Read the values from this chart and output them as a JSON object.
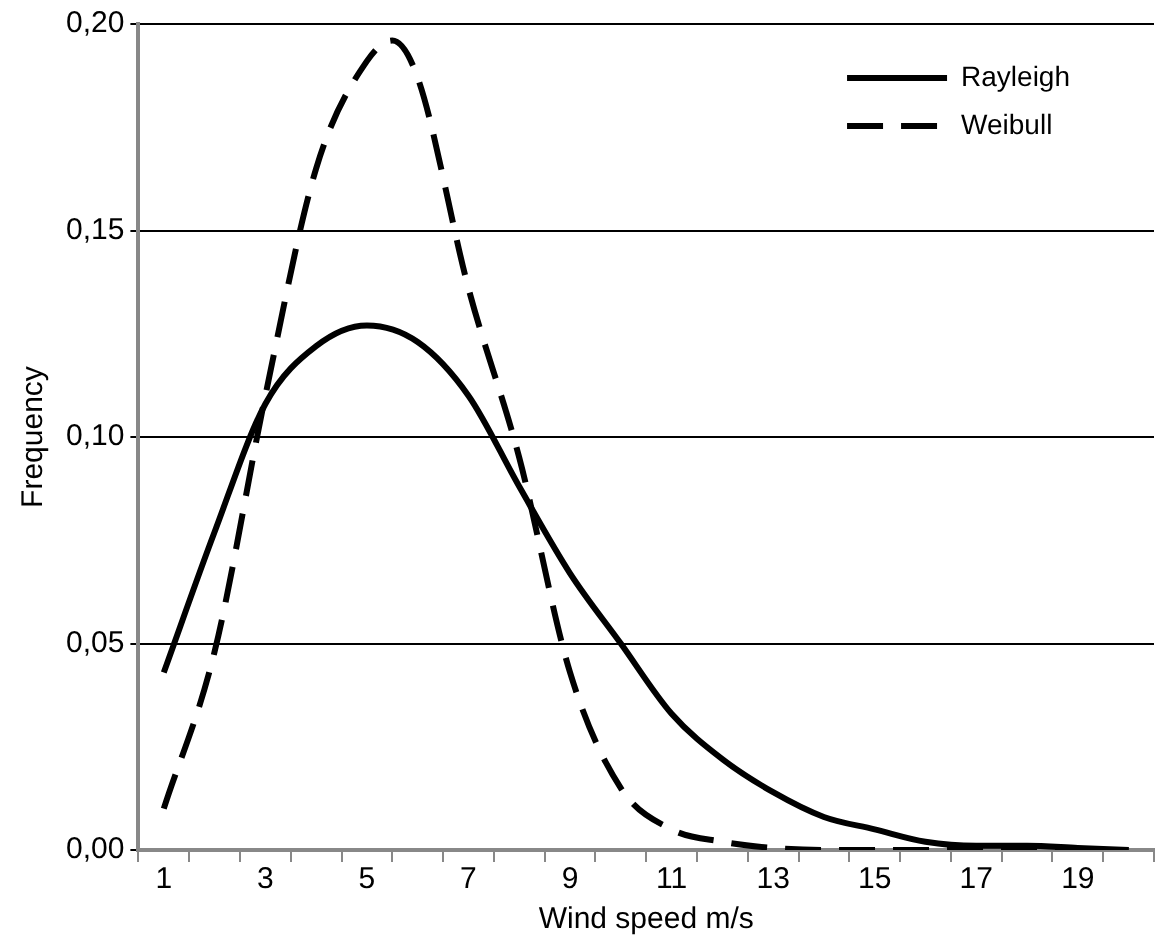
{
  "chart_data": {
    "type": "line",
    "xlabel": "Wind speed m/s",
    "ylabel": "Frequency",
    "xlim": [
      0.5,
      20.5
    ],
    "xticks": [
      {
        "value": 0.5,
        "label": null
      },
      1,
      {
        "value": 1.5,
        "label": null
      },
      {
        "value": 2.5,
        "label": null
      },
      3,
      {
        "value": 3.5,
        "label": null
      },
      {
        "value": 4.5,
        "label": null
      },
      5,
      {
        "value": 5.5,
        "label": null
      },
      {
        "value": 6.5,
        "label": null
      },
      7,
      {
        "value": 7.5,
        "label": null
      },
      {
        "value": 8.5,
        "label": null
      },
      9,
      {
        "value": 9.5,
        "label": null
      },
      {
        "value": 10.5,
        "label": null
      },
      11,
      {
        "value": 11.5,
        "label": null
      },
      {
        "value": 12.5,
        "label": null
      },
      13,
      {
        "value": 13.5,
        "label": null
      },
      {
        "value": 14.5,
        "label": null
      },
      15,
      {
        "value": 15.5,
        "label": null
      },
      {
        "value": 16.5,
        "label": null
      },
      17,
      {
        "value": 17.5,
        "label": null
      },
      {
        "value": 18.5,
        "label": null
      },
      19,
      {
        "value": 19.5,
        "label": null
      },
      {
        "value": 20.5,
        "label": null
      }
    ],
    "ylim": [
      0,
      0.2
    ],
    "yticks": [
      {
        "value": 0,
        "label": "0,00"
      },
      {
        "value": 0.05,
        "label": "0,05"
      },
      {
        "value": 0.1,
        "label": "0,10"
      },
      {
        "value": 0.15,
        "label": "0,15"
      },
      {
        "value": 0.2,
        "label": "0,20"
      }
    ],
    "grid": "y",
    "legend": "top right",
    "marker": "none",
    "series": [
      {
        "name": "Rayleigh",
        "color": "#000000",
        "line_style": "solid",
        "x": [
          1,
          2,
          3,
          4,
          5,
          6,
          7,
          8,
          9,
          10,
          11,
          12,
          13,
          14,
          15,
          16,
          17,
          18,
          19,
          20
        ],
        "values": [
          0.043,
          0.077,
          0.108,
          0.122,
          0.127,
          0.123,
          0.11,
          0.088,
          0.067,
          0.05,
          0.033,
          0.022,
          0.014,
          0.008,
          0.005,
          0.002,
          0.001,
          0.001,
          0.0005,
          0
        ]
      },
      {
        "name": "Weibull",
        "color": "#000000",
        "line_style": "dashed",
        "x": [
          1,
          2,
          3,
          4,
          5,
          5.5,
          6,
          7,
          8,
          9,
          10,
          11,
          12,
          13,
          14,
          15,
          16,
          17,
          18,
          19,
          20
        ],
        "values": [
          0.01,
          0.048,
          0.11,
          0.165,
          0.191,
          0.196,
          0.187,
          0.136,
          0.095,
          0.043,
          0.015,
          0.005,
          0.002,
          0.0005,
          0,
          0,
          0,
          0,
          0,
          0,
          0
        ]
      }
    ]
  }
}
